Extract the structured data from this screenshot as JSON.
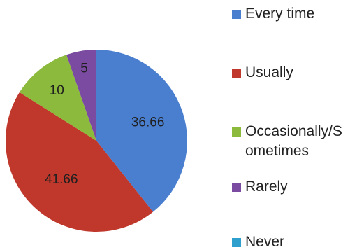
{
  "chart_data": {
    "type": "pie",
    "categories": [
      "Every time",
      "Usually",
      "Occasionally/S\nometimes",
      "Rarely",
      "Never"
    ],
    "values": [
      36.66,
      41.66,
      10,
      5,
      0
    ],
    "data_labels": [
      "36.66",
      "41.66",
      "10",
      "5",
      ""
    ],
    "legend_placement": "right",
    "colors": [
      "#4a7fd0",
      "#c0382c",
      "#8cba3c",
      "#7a4ba0",
      "#2f9fcd"
    ]
  }
}
